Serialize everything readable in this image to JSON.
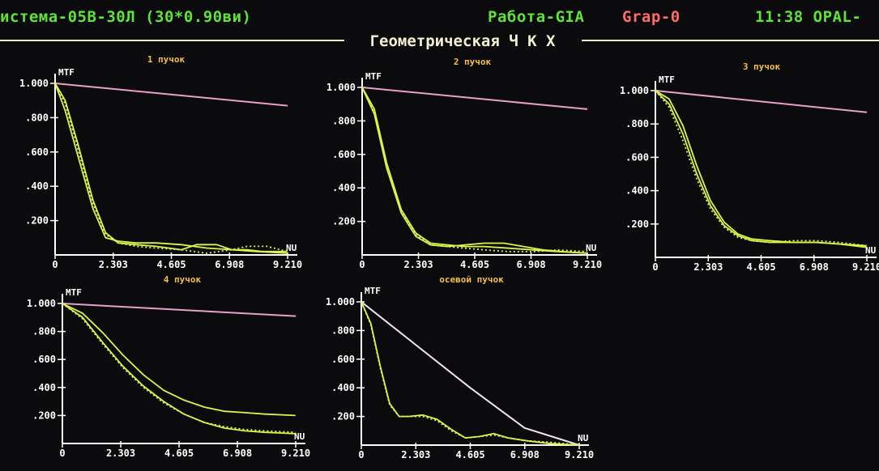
{
  "header": {
    "system": "истема-05В-30Л (30*0.90ви)",
    "mode": "Работа-GIA",
    "grap": "Grap-0",
    "clock": "11:38 OPAL-"
  },
  "title": "Геометрическая Ч К Х",
  "colors": {
    "background": "#0b0b0d",
    "header_green": "#5fe23a",
    "header_red": "#ff6b6b",
    "title_text": "#f4f1d2",
    "panel_title": "#f6c23c",
    "axis": "#ffffff",
    "diffraction_curve": "#e9a0c6",
    "diffraction_curve_axial": "#f4e4f0",
    "mtf_curve": "#d9f54a"
  },
  "chart_data": [
    {
      "type": "line",
      "title": "1 пучок",
      "ylabel": "MTF",
      "xlabel": "NU",
      "ylim": [
        0,
        1.0
      ],
      "xlim": [
        0,
        9.21
      ],
      "yticks": [
        "1.000",
        ".800",
        ".600",
        ".400",
        ".200"
      ],
      "xticks": [
        "0",
        "2.303",
        "4.605",
        "6.908",
        "9.210"
      ],
      "series": [
        {
          "style": "diffraction",
          "x": [
            0,
            9.21
          ],
          "y": [
            1.0,
            0.87
          ]
        },
        {
          "style": "solid",
          "x": [
            0,
            0.4,
            0.9,
            1.5,
            2.0,
            2.5,
            3.2,
            4.0,
            5.0,
            5.6,
            6.4,
            7.0,
            7.6,
            8.2,
            9.2
          ],
          "y": [
            1.0,
            0.9,
            0.65,
            0.32,
            0.13,
            0.07,
            0.06,
            0.05,
            0.03,
            0.06,
            0.06,
            0.03,
            0.03,
            0.02,
            0.02
          ]
        },
        {
          "style": "solid",
          "x": [
            0,
            0.4,
            0.9,
            1.5,
            2.0,
            2.5,
            3.2,
            4.0,
            5.0,
            6.0,
            7.0,
            8.0,
            9.2
          ],
          "y": [
            1.0,
            0.84,
            0.58,
            0.27,
            0.1,
            0.08,
            0.07,
            0.07,
            0.06,
            0.04,
            0.03,
            0.02,
            0.01
          ]
        },
        {
          "style": "dotted",
          "x": [
            0,
            0.4,
            0.9,
            1.5,
            2.0,
            2.5,
            3.2,
            4.0,
            5.0,
            6.0,
            7.0,
            7.6,
            8.4,
            9.2
          ],
          "y": [
            1.0,
            0.88,
            0.62,
            0.3,
            0.12,
            0.07,
            0.05,
            0.04,
            0.03,
            0.01,
            0.03,
            0.05,
            0.05,
            0.02
          ]
        }
      ]
    },
    {
      "type": "line",
      "title": "2 пучок",
      "ylabel": "MTF",
      "xlabel": "NU",
      "ylim": [
        0,
        1.0
      ],
      "xlim": [
        0,
        9.21
      ],
      "yticks": [
        "1.000",
        ".800",
        ".600",
        ".400",
        ".200"
      ],
      "xticks": [
        "0",
        "2.303",
        "4.605",
        "6.908",
        "9.210"
      ],
      "series": [
        {
          "style": "diffraction",
          "x": [
            0,
            9.21
          ],
          "y": [
            1.0,
            0.87
          ]
        },
        {
          "style": "solid",
          "x": [
            0,
            0.5,
            1.0,
            1.6,
            2.2,
            2.8,
            3.5,
            4.2,
            5.0,
            6.0,
            7.0,
            8.0,
            9.2
          ],
          "y": [
            1.0,
            0.87,
            0.55,
            0.27,
            0.13,
            0.07,
            0.06,
            0.05,
            0.05,
            0.04,
            0.03,
            0.02,
            0.01
          ]
        },
        {
          "style": "solid",
          "x": [
            0,
            0.5,
            1.0,
            1.6,
            2.2,
            2.8,
            3.5,
            4.2,
            5.0,
            5.8,
            6.6,
            7.4,
            8.2,
            9.2
          ],
          "y": [
            1.0,
            0.84,
            0.52,
            0.25,
            0.11,
            0.06,
            0.05,
            0.06,
            0.07,
            0.07,
            0.05,
            0.03,
            0.02,
            0.01
          ]
        },
        {
          "style": "dotted",
          "x": [
            0,
            0.5,
            1.0,
            1.6,
            2.2,
            2.8,
            3.5,
            4.2,
            5.0,
            6.0,
            7.0,
            8.0,
            9.2
          ],
          "y": [
            1.0,
            0.85,
            0.54,
            0.26,
            0.12,
            0.06,
            0.05,
            0.04,
            0.03,
            0.02,
            0.02,
            0.03,
            0.02
          ]
        }
      ]
    },
    {
      "type": "line",
      "title": "3 пучок",
      "ylabel": "MTF",
      "xlabel": "NU",
      "ylim": [
        0,
        1.0
      ],
      "xlim": [
        0,
        9.21
      ],
      "yticks": [
        "1.000",
        ".800",
        ".600",
        ".400",
        ".200"
      ],
      "xticks": [
        "0",
        "2.303",
        "4.605",
        "6.908",
        "9.210"
      ],
      "series": [
        {
          "style": "diffraction",
          "x": [
            0,
            9.21
          ],
          "y": [
            1.0,
            0.87
          ]
        },
        {
          "style": "solid",
          "x": [
            0,
            0.6,
            1.2,
            1.8,
            2.4,
            3.0,
            3.6,
            4.2,
            5.0,
            6.0,
            7.0,
            8.0,
            9.2
          ],
          "y": [
            1.0,
            0.92,
            0.74,
            0.5,
            0.31,
            0.19,
            0.13,
            0.1,
            0.09,
            0.09,
            0.09,
            0.08,
            0.07
          ]
        },
        {
          "style": "solid",
          "x": [
            0,
            0.6,
            1.2,
            1.8,
            2.4,
            3.0,
            3.6,
            4.2,
            5.0,
            6.0,
            7.0,
            8.0,
            9.2
          ],
          "y": [
            1.0,
            0.95,
            0.79,
            0.55,
            0.34,
            0.21,
            0.14,
            0.11,
            0.1,
            0.09,
            0.09,
            0.08,
            0.06
          ]
        },
        {
          "style": "dotted",
          "x": [
            0,
            0.6,
            1.2,
            1.8,
            2.4,
            3.0,
            3.6,
            4.2,
            5.0,
            6.0,
            7.0,
            8.0,
            9.2
          ],
          "y": [
            1.0,
            0.9,
            0.7,
            0.47,
            0.29,
            0.18,
            0.12,
            0.1,
            0.09,
            0.1,
            0.1,
            0.09,
            0.07
          ]
        }
      ]
    },
    {
      "type": "line",
      "title": "4 пучок",
      "ylabel": "MTF",
      "xlabel": "NU",
      "ylim": [
        0,
        1.0
      ],
      "xlim": [
        0,
        9.21
      ],
      "yticks": [
        "1.000",
        ".800",
        ".600",
        ".400",
        ".200"
      ],
      "xticks": [
        "0",
        "2.303",
        "4.605",
        "6.908",
        "9.210"
      ],
      "series": [
        {
          "style": "diffraction",
          "x": [
            0,
            9.21
          ],
          "y": [
            1.0,
            0.91
          ]
        },
        {
          "style": "solid",
          "x": [
            0,
            0.8,
            1.6,
            2.4,
            3.2,
            4.0,
            4.8,
            5.6,
            6.4,
            7.2,
            8.0,
            9.2
          ],
          "y": [
            1.0,
            0.93,
            0.79,
            0.63,
            0.49,
            0.38,
            0.31,
            0.26,
            0.23,
            0.22,
            0.21,
            0.2
          ]
        },
        {
          "style": "solid",
          "x": [
            0,
            0.8,
            1.6,
            2.4,
            3.2,
            4.0,
            4.8,
            5.6,
            6.4,
            7.2,
            8.0,
            9.2
          ],
          "y": [
            1.0,
            0.9,
            0.72,
            0.55,
            0.41,
            0.3,
            0.21,
            0.15,
            0.11,
            0.09,
            0.08,
            0.07
          ]
        },
        {
          "style": "dotted",
          "x": [
            0,
            0.8,
            1.6,
            2.4,
            3.2,
            4.0,
            4.8,
            5.6,
            6.4,
            7.2,
            8.0,
            9.2
          ],
          "y": [
            1.0,
            0.89,
            0.71,
            0.54,
            0.4,
            0.29,
            0.21,
            0.15,
            0.12,
            0.1,
            0.09,
            0.08
          ]
        }
      ]
    },
    {
      "type": "line",
      "title": "осевой пучок",
      "ylabel": "MTF",
      "xlabel": "NU",
      "ylim": [
        0,
        1.0
      ],
      "xlim": [
        0,
        9.21
      ],
      "yticks": [
        "1.000",
        ".800",
        ".600",
        ".400",
        ".200"
      ],
      "xticks": [
        "0",
        "2.303",
        "4.605",
        "6.908",
        "9.210"
      ],
      "series": [
        {
          "style": "diffraction",
          "x": [
            0,
            2.3,
            4.6,
            6.9,
            9.21
          ],
          "y": [
            1.0,
            0.7,
            0.4,
            0.12,
            0.0
          ]
        },
        {
          "style": "solid",
          "x": [
            0,
            0.4,
            0.8,
            1.2,
            1.6,
            2.0,
            2.6,
            3.2,
            3.8,
            4.4,
            5.0,
            5.6,
            6.2,
            7.0,
            8.0,
            9.2
          ],
          "y": [
            1.0,
            0.85,
            0.55,
            0.29,
            0.2,
            0.2,
            0.21,
            0.18,
            0.11,
            0.05,
            0.06,
            0.08,
            0.05,
            0.03,
            0.01,
            0.0
          ]
        },
        {
          "style": "dotted",
          "x": [
            0,
            0.4,
            0.8,
            1.2,
            1.6,
            2.0,
            2.6,
            3.2,
            3.8,
            4.4,
            5.0,
            5.6,
            6.2,
            7.0,
            8.0,
            9.2
          ],
          "y": [
            1.0,
            0.84,
            0.54,
            0.28,
            0.2,
            0.2,
            0.2,
            0.17,
            0.1,
            0.05,
            0.06,
            0.07,
            0.05,
            0.03,
            0.02,
            0.0
          ]
        }
      ]
    }
  ]
}
